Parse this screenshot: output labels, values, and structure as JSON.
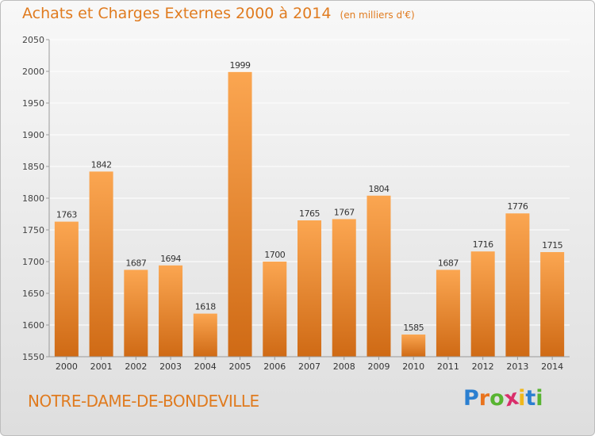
{
  "title": "Achats et Charges Externes 2000 à 2014",
  "unit": "(en milliers d'€)",
  "commune": "NOTRE-DAME-DE-BONDEVILLE",
  "logo": {
    "letters": [
      "P",
      "r",
      "o",
      "x",
      "i",
      "t",
      "i"
    ],
    "colors": [
      "#2b7fd0",
      "#e9731d",
      "#58b431",
      "#d92e6b",
      "#f0b81c",
      "#2b7fd0",
      "#58b431"
    ]
  },
  "colors": {
    "bar_top": "#fba651",
    "bar_bottom": "#cf6a15",
    "title": "#e07b1f",
    "grid": "#ffffff",
    "axis": "#9a9a9a"
  },
  "chart_data": {
    "type": "bar",
    "categories": [
      "2000",
      "2001",
      "2002",
      "2003",
      "2004",
      "2005",
      "2006",
      "2007",
      "2008",
      "2009",
      "2010",
      "2011",
      "2012",
      "2013",
      "2014"
    ],
    "values": [
      1763,
      1842,
      1687,
      1694,
      1618,
      1999,
      1700,
      1765,
      1767,
      1804,
      1585,
      1687,
      1716,
      1776,
      1715
    ],
    "title": "Achats et Charges Externes 2000 à 2014",
    "ylim": [
      1550,
      2050
    ],
    "yticks": [
      1550,
      1600,
      1650,
      1700,
      1750,
      1800,
      1850,
      1900,
      1950,
      2000,
      2050
    ],
    "grid": true
  }
}
